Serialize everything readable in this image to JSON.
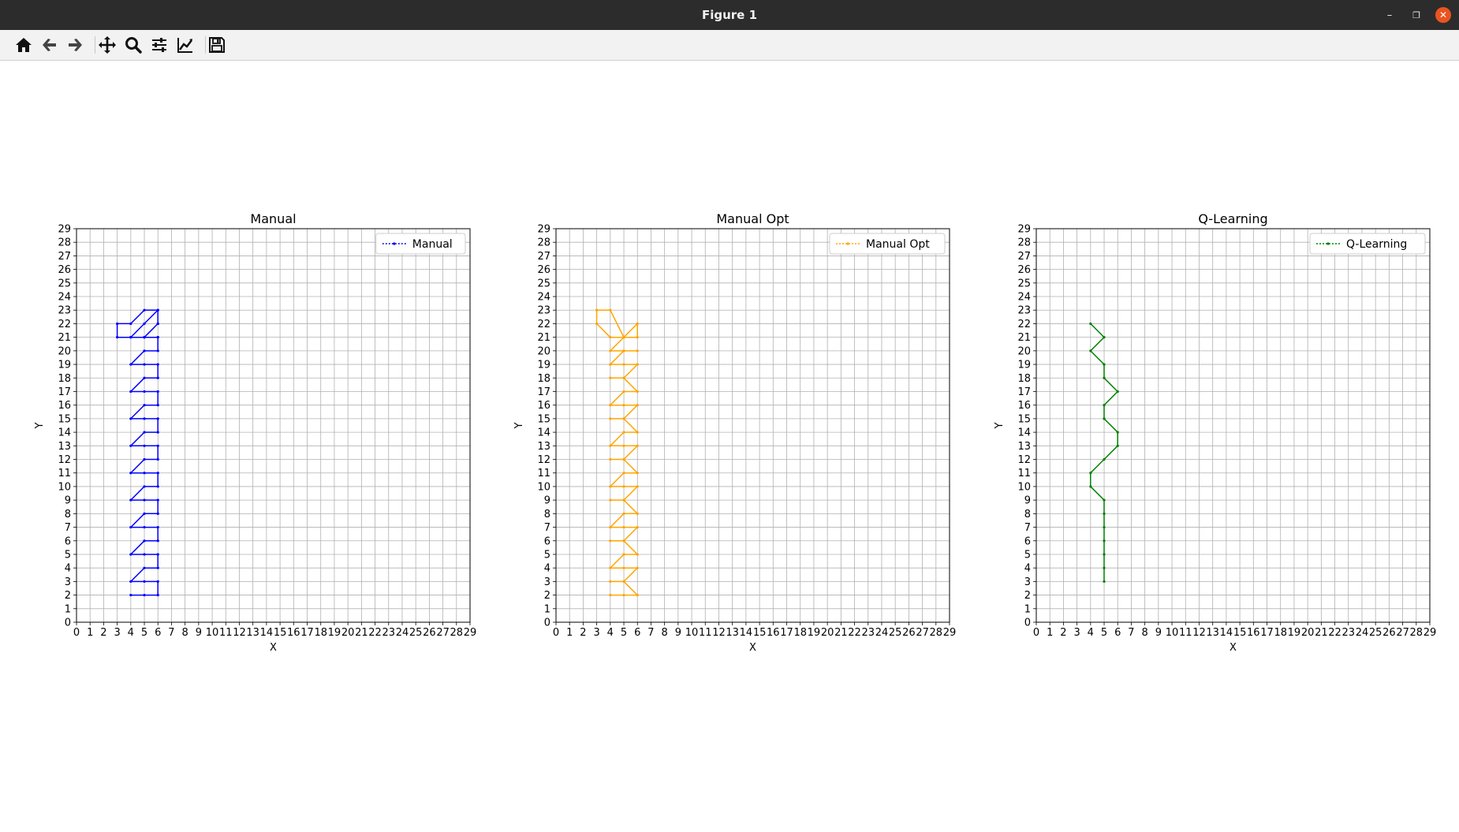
{
  "window": {
    "title": "Figure 1",
    "controls": [
      "minimize",
      "restore",
      "close"
    ]
  },
  "toolbar": {
    "tools": [
      {
        "name": "home-button",
        "icon": "home-icon"
      },
      {
        "name": "back-button",
        "icon": "arrow-left-icon"
      },
      {
        "name": "forward-button",
        "icon": "arrow-right-icon"
      },
      {
        "name": "pan-button",
        "icon": "move-icon"
      },
      {
        "name": "zoom-button",
        "icon": "magnifier-icon"
      },
      {
        "name": "subplots-button",
        "icon": "sliders-icon"
      },
      {
        "name": "edit-axes-button",
        "icon": "line-chart-icon"
      },
      {
        "name": "save-button",
        "icon": "floppy-disk-icon"
      }
    ]
  },
  "chart_data": [
    {
      "type": "line",
      "title": "Manual",
      "xlabel": "X",
      "ylabel": "Y",
      "xlim": [
        0,
        29
      ],
      "ylim": [
        0,
        29
      ],
      "xticks": [
        0,
        1,
        2,
        3,
        4,
        5,
        6,
        7,
        8,
        9,
        10,
        11,
        12,
        13,
        14,
        15,
        16,
        17,
        18,
        19,
        20,
        21,
        22,
        23,
        24,
        25,
        26,
        27,
        28,
        29
      ],
      "yticks": [
        0,
        1,
        2,
        3,
        4,
        5,
        6,
        7,
        8,
        9,
        10,
        11,
        12,
        13,
        14,
        15,
        16,
        17,
        18,
        19,
        20,
        21,
        22,
        23,
        24,
        25,
        26,
        27,
        28,
        29
      ],
      "grid": true,
      "legend": "top-right",
      "series": [
        {
          "name": "Manual",
          "color": "#0000ff",
          "linestyle": "dotted",
          "marker": "dot",
          "x": [
            4,
            5,
            6,
            6,
            5,
            4,
            5,
            6,
            6,
            5,
            4,
            5,
            6,
            6,
            5,
            4,
            5,
            6,
            6,
            5,
            4,
            5,
            6,
            6,
            5,
            4,
            5,
            6,
            6,
            5,
            4,
            5,
            6,
            6,
            5,
            4,
            5,
            6,
            6,
            5,
            4,
            5,
            6,
            6,
            5,
            4,
            5,
            6,
            6,
            5,
            4,
            5,
            6,
            6,
            5,
            4,
            5,
            6,
            6,
            5,
            4,
            3,
            3,
            4,
            5,
            6
          ],
          "y": [
            2,
            2,
            2,
            3,
            3,
            3,
            4,
            4,
            5,
            5,
            5,
            6,
            6,
            7,
            7,
            7,
            8,
            8,
            9,
            9,
            9,
            10,
            10,
            11,
            11,
            11,
            12,
            12,
            13,
            13,
            13,
            14,
            14,
            15,
            15,
            15,
            16,
            16,
            17,
            17,
            17,
            18,
            18,
            19,
            19,
            19,
            20,
            20,
            21,
            21,
            21,
            22,
            23,
            22,
            21,
            21,
            21,
            22,
            23,
            23,
            22,
            22,
            21,
            21,
            21,
            21
          ]
        }
      ]
    },
    {
      "type": "line",
      "title": "Manual Opt",
      "xlabel": "X",
      "ylabel": "Y",
      "xlim": [
        0,
        29
      ],
      "ylim": [
        0,
        29
      ],
      "xticks": [
        0,
        1,
        2,
        3,
        4,
        5,
        6,
        7,
        8,
        9,
        10,
        11,
        12,
        13,
        14,
        15,
        16,
        17,
        18,
        19,
        20,
        21,
        22,
        23,
        24,
        25,
        26,
        27,
        28,
        29
      ],
      "yticks": [
        0,
        1,
        2,
        3,
        4,
        5,
        6,
        7,
        8,
        9,
        10,
        11,
        12,
        13,
        14,
        15,
        16,
        17,
        18,
        19,
        20,
        21,
        22,
        23,
        24,
        25,
        26,
        27,
        28,
        29
      ],
      "grid": true,
      "legend": "top-right",
      "series": [
        {
          "name": "Manual Opt",
          "color": "#ffa500",
          "linestyle": "dotted",
          "marker": "dot",
          "x": [
            4,
            5,
            6,
            5,
            4,
            5,
            6,
            5,
            4,
            5,
            6,
            5,
            4,
            5,
            6,
            5,
            4,
            5,
            6,
            5,
            4,
            5,
            6,
            5,
            4,
            5,
            6,
            5,
            4,
            5,
            6,
            5,
            4,
            5,
            6,
            5,
            4,
            5,
            6,
            5,
            4,
            5,
            6,
            5,
            4,
            5,
            6,
            5,
            4,
            5,
            6,
            5,
            4,
            5,
            6,
            6,
            5,
            4,
            3,
            3,
            4,
            5,
            6
          ],
          "y": [
            2,
            2,
            2,
            3,
            3,
            3,
            4,
            4,
            4,
            5,
            5,
            6,
            6,
            6,
            7,
            7,
            7,
            8,
            8,
            9,
            9,
            9,
            10,
            10,
            10,
            11,
            11,
            12,
            12,
            12,
            13,
            13,
            13,
            14,
            14,
            15,
            15,
            15,
            16,
            16,
            16,
            17,
            17,
            18,
            18,
            18,
            19,
            19,
            19,
            20,
            20,
            20,
            20,
            21,
            21,
            22,
            21,
            23,
            23,
            22,
            21,
            21,
            22
          ]
        }
      ]
    },
    {
      "type": "line",
      "title": "Q-Learning",
      "xlabel": "X",
      "ylabel": "Y",
      "xlim": [
        0,
        29
      ],
      "ylim": [
        0,
        29
      ],
      "xticks": [
        0,
        1,
        2,
        3,
        4,
        5,
        6,
        7,
        8,
        9,
        10,
        11,
        12,
        13,
        14,
        15,
        16,
        17,
        18,
        19,
        20,
        21,
        22,
        23,
        24,
        25,
        26,
        27,
        28,
        29
      ],
      "yticks": [
        0,
        1,
        2,
        3,
        4,
        5,
        6,
        7,
        8,
        9,
        10,
        11,
        12,
        13,
        14,
        15,
        16,
        17,
        18,
        19,
        20,
        21,
        22,
        23,
        24,
        25,
        26,
        27,
        28,
        29
      ],
      "grid": true,
      "legend": "top-right",
      "series": [
        {
          "name": "Q-Learning",
          "color": "#008000",
          "linestyle": "dotted",
          "marker": "dot",
          "x": [
            5,
            5,
            5,
            5,
            5,
            5,
            5,
            4,
            4,
            5,
            6,
            6,
            5,
            5,
            6,
            5,
            5,
            4,
            5,
            4
          ],
          "y": [
            3,
            4,
            5,
            6,
            7,
            8,
            9,
            10,
            11,
            12,
            13,
            14,
            15,
            16,
            17,
            18,
            19,
            20,
            21,
            22
          ]
        }
      ]
    }
  ]
}
